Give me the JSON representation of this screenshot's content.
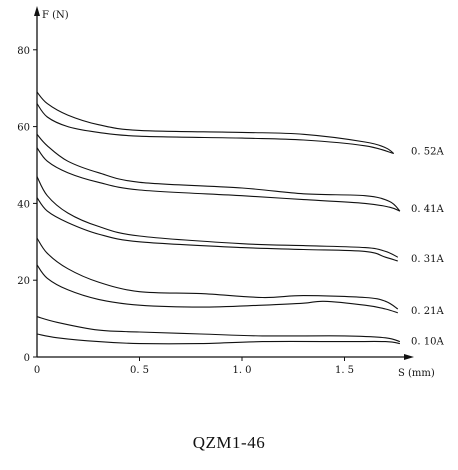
{
  "caption": "QZM1-46",
  "chart_data": {
    "type": "line",
    "title": "",
    "xlabel": "S (mm)",
    "ylabel": "F (N)",
    "xlim": [
      0,
      1.8
    ],
    "ylim": [
      0,
      85
    ],
    "x_ticks": [
      0,
      0.5,
      1.0,
      1.5
    ],
    "x_tick_labels": [
      "0",
      "0. 5",
      "1. 0",
      "1. 5"
    ],
    "y_ticks": [
      0,
      20,
      40,
      60,
      80
    ],
    "y_tick_labels": [
      "0",
      "20",
      "40",
      "60",
      "80"
    ],
    "grid": false,
    "series": [
      {
        "name": "0. 52A",
        "upper": [
          [
            0,
            69
          ],
          [
            0.05,
            66
          ],
          [
            0.15,
            63
          ],
          [
            0.3,
            60.5
          ],
          [
            0.5,
            59
          ],
          [
            1.0,
            58.5
          ],
          [
            1.3,
            58
          ],
          [
            1.6,
            56
          ],
          [
            1.7,
            54.5
          ],
          [
            1.74,
            53
          ]
        ],
        "lower": [
          [
            0,
            66
          ],
          [
            0.05,
            62.5
          ],
          [
            0.15,
            60
          ],
          [
            0.3,
            58.5
          ],
          [
            0.5,
            57.5
          ],
          [
            1.0,
            57
          ],
          [
            1.3,
            56.5
          ],
          [
            1.6,
            55
          ],
          [
            1.74,
            53
          ]
        ]
      },
      {
        "name": "0. 41A",
        "upper": [
          [
            0,
            58
          ],
          [
            0.05,
            55
          ],
          [
            0.15,
            51
          ],
          [
            0.3,
            48
          ],
          [
            0.5,
            45.5
          ],
          [
            1.0,
            44
          ],
          [
            1.3,
            42.5
          ],
          [
            1.6,
            42
          ],
          [
            1.72,
            40.5
          ],
          [
            1.77,
            38
          ]
        ],
        "lower": [
          [
            0,
            54.5
          ],
          [
            0.05,
            51
          ],
          [
            0.15,
            48
          ],
          [
            0.3,
            45.5
          ],
          [
            0.5,
            43.5
          ],
          [
            1.0,
            42
          ],
          [
            1.3,
            41
          ],
          [
            1.6,
            40
          ],
          [
            1.72,
            39
          ],
          [
            1.77,
            38
          ]
        ]
      },
      {
        "name": "0. 31A",
        "upper": [
          [
            0,
            47
          ],
          [
            0.05,
            42
          ],
          [
            0.15,
            37.5
          ],
          [
            0.3,
            34
          ],
          [
            0.5,
            31.5
          ],
          [
            1.0,
            29.5
          ],
          [
            1.3,
            29
          ],
          [
            1.6,
            28.5
          ],
          [
            1.7,
            27.5
          ],
          [
            1.76,
            26
          ]
        ],
        "lower": [
          [
            0,
            41.5
          ],
          [
            0.05,
            38
          ],
          [
            0.15,
            35
          ],
          [
            0.3,
            32
          ],
          [
            0.5,
            30
          ],
          [
            1.0,
            28.5
          ],
          [
            1.3,
            28
          ],
          [
            1.6,
            27.5
          ],
          [
            1.7,
            26
          ],
          [
            1.76,
            25
          ]
        ]
      },
      {
        "name": "0. 21A",
        "upper": [
          [
            0,
            31
          ],
          [
            0.05,
            27
          ],
          [
            0.15,
            23
          ],
          [
            0.3,
            19.5
          ],
          [
            0.5,
            17
          ],
          [
            0.8,
            16.5
          ],
          [
            1.1,
            15.5
          ],
          [
            1.3,
            16
          ],
          [
            1.6,
            15.5
          ],
          [
            1.7,
            14.5
          ],
          [
            1.76,
            12.5
          ]
        ],
        "lower": [
          [
            0,
            24
          ],
          [
            0.05,
            20.5
          ],
          [
            0.15,
            17.5
          ],
          [
            0.3,
            15
          ],
          [
            0.5,
            13.5
          ],
          [
            0.8,
            13
          ],
          [
            1.1,
            13.5
          ],
          [
            1.3,
            14
          ],
          [
            1.4,
            14.5
          ],
          [
            1.6,
            13.5
          ],
          [
            1.7,
            12.5
          ],
          [
            1.76,
            11.5
          ]
        ]
      },
      {
        "name": "0. 10A",
        "upper": [
          [
            0,
            10.5
          ],
          [
            0.1,
            9
          ],
          [
            0.3,
            7
          ],
          [
            0.5,
            6.5
          ],
          [
            0.8,
            6
          ],
          [
            1.1,
            5.5
          ],
          [
            1.5,
            5.5
          ],
          [
            1.7,
            5
          ],
          [
            1.77,
            4
          ]
        ],
        "lower": [
          [
            0,
            6
          ],
          [
            0.1,
            5
          ],
          [
            0.3,
            4
          ],
          [
            0.5,
            3.5
          ],
          [
            0.8,
            3.5
          ],
          [
            1.1,
            4
          ],
          [
            1.5,
            4
          ],
          [
            1.7,
            4
          ],
          [
            1.77,
            3.5
          ]
        ]
      }
    ]
  }
}
